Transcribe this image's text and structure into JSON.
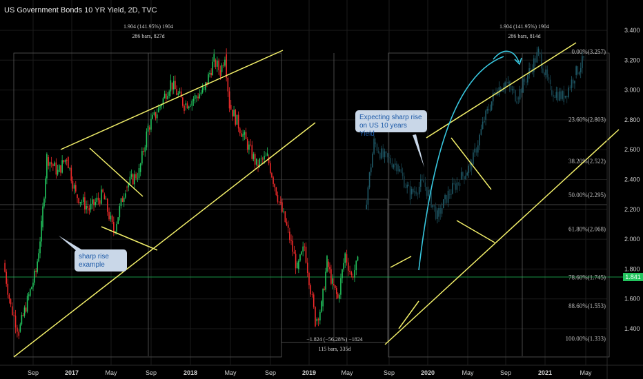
{
  "header": {
    "title": "US Government Bonds 10 YR Yield, 2D, TVC"
  },
  "callouts": {
    "sharp_rise_example": "sharp rise\nexample",
    "expecting": "Expecting sharp rise\non US 10 years Yield"
  },
  "measurements": {
    "left_top": {
      "line1": "1.904 (141.95%) 1904",
      "line2": "286 bars, 827d"
    },
    "right_top": {
      "line1": "1.904 (141.95%) 1904",
      "line2": "286 bars, 814d"
    },
    "bottom": {
      "line1": "−1.824 (−56.28%) −1824",
      "line2": "115 bars, 335d"
    }
  },
  "last_price": "1.841",
  "colors": {
    "background": "#000000",
    "up": "#22c55e",
    "down": "#ef2a2a",
    "projection": "#1f5a68",
    "trendline": "#f3f06a",
    "arrow": "#38c8e0",
    "grid": "#1c1c1c",
    "price_line": "#22c55e"
  },
  "chart_data": {
    "type": "candlestick",
    "title": "US Government Bonds 10 YR Yield, 2D, TVC",
    "x_tick_labels": [
      "Sep",
      "2017",
      "May",
      "Sep",
      "2018",
      "May",
      "Sep",
      "2019",
      "May",
      "Sep",
      "2020",
      "May",
      "Sep",
      "2021",
      "May"
    ],
    "y_tick_labels": [
      "3.400",
      "3.200",
      "3.000",
      "2.800",
      "2.600",
      "2.400",
      "2.200",
      "2.000",
      "1.800",
      "1.600",
      "1.400"
    ],
    "ylim": [
      1.3,
      3.5
    ],
    "last_price": 1.841,
    "fib_levels": [
      {
        "label": "0.00%(3.257)",
        "value": 3.257
      },
      {
        "label": "23.60%(2.803)",
        "value": 2.803
      },
      {
        "label": "38.20%(2.522)",
        "value": 2.522
      },
      {
        "label": "50.00%(2.295)",
        "value": 2.295
      },
      {
        "label": "61.80%(2.068)",
        "value": 2.068
      },
      {
        "label": "78.60%(1.745)",
        "value": 1.745
      },
      {
        "label": "88.60%(1.553)",
        "value": 1.553
      },
      {
        "label": "100.00%(1.333)",
        "value": 1.333
      }
    ],
    "price_path": [
      [
        2016.5,
        1.84
      ],
      [
        2016.58,
        1.55
      ],
      [
        2016.67,
        1.38
      ],
      [
        2016.78,
        1.62
      ],
      [
        2016.86,
        1.78
      ],
      [
        2016.92,
        2.08
      ],
      [
        2016.98,
        2.55
      ],
      [
        2017.1,
        2.45
      ],
      [
        2017.2,
        2.55
      ],
      [
        2017.3,
        2.3
      ],
      [
        2017.45,
        2.2
      ],
      [
        2017.6,
        2.3
      ],
      [
        2017.72,
        2.05
      ],
      [
        2017.85,
        2.35
      ],
      [
        2018.0,
        2.45
      ],
      [
        2018.1,
        2.75
      ],
      [
        2018.2,
        2.85
      ],
      [
        2018.35,
        3.05
      ],
      [
        2018.5,
        2.9
      ],
      [
        2018.62,
        2.95
      ],
      [
        2018.72,
        3.0
      ],
      [
        2018.83,
        3.2
      ],
      [
        2018.9,
        3.12
      ],
      [
        2018.95,
        3.24
      ],
      [
        2019.0,
        2.9
      ],
      [
        2019.15,
        2.7
      ],
      [
        2019.3,
        2.5
      ],
      [
        2019.42,
        2.55
      ],
      [
        2019.55,
        2.25
      ],
      [
        2019.65,
        2.05
      ],
      [
        2019.75,
        1.8
      ],
      [
        2019.83,
        1.95
      ],
      [
        2019.95,
        1.45
      ],
      [
        2020.02,
        1.55
      ],
      [
        2020.08,
        1.85
      ],
      [
        2020.14,
        1.7
      ],
      [
        2020.2,
        1.6
      ],
      [
        2020.28,
        1.9
      ],
      [
        2020.35,
        1.75
      ],
      [
        2020.42,
        1.84
      ]
    ],
    "projection_path": [
      [
        2020.5,
        2.2
      ],
      [
        2020.6,
        2.65
      ],
      [
        2020.7,
        2.55
      ],
      [
        2020.85,
        2.5
      ],
      [
        2021.0,
        2.3
      ],
      [
        2021.15,
        2.38
      ],
      [
        2021.3,
        2.15
      ],
      [
        2021.42,
        2.3
      ],
      [
        2021.55,
        2.4
      ],
      [
        2021.68,
        2.5
      ],
      [
        2021.82,
        2.8
      ],
      [
        2021.95,
        3.0
      ],
      [
        2022.05,
        3.05
      ],
      [
        2022.18,
        2.95
      ],
      [
        2022.3,
        3.1
      ],
      [
        2022.42,
        3.25
      ],
      [
        2022.55,
        3.0
      ],
      [
        2022.7,
        2.95
      ],
      [
        2022.82,
        3.1
      ],
      [
        2022.92,
        3.2
      ]
    ]
  }
}
